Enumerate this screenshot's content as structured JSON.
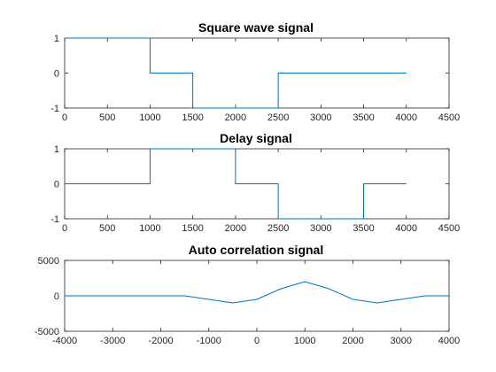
{
  "chart_data": [
    {
      "type": "line",
      "title": "Square wave signal",
      "xlabel": "",
      "ylabel": "",
      "xlim": [
        0,
        4500
      ],
      "ylim": [
        -1,
        1
      ],
      "xticks": [
        0,
        500,
        1000,
        1500,
        2000,
        2500,
        3000,
        3500,
        4000,
        4500
      ],
      "yticks": [
        -1,
        0,
        1
      ],
      "grid": false,
      "color": "#0072BD",
      "series": [
        {
          "x": [
            0,
            1000,
            1000,
            1500,
            1500,
            2500,
            2500,
            4000
          ],
          "y": [
            1,
            1,
            0,
            0,
            -1,
            -1,
            0,
            0
          ]
        }
      ]
    },
    {
      "type": "line",
      "title": "Delay signal",
      "xlabel": "",
      "ylabel": "",
      "xlim": [
        0,
        4500
      ],
      "ylim": [
        -1,
        1
      ],
      "xticks": [
        0,
        500,
        1000,
        1500,
        2000,
        2500,
        3000,
        3500,
        4000,
        4500
      ],
      "yticks": [
        -1,
        0,
        1
      ],
      "grid": false,
      "color": "#0072BD",
      "series": [
        {
          "x": [
            0,
            1000,
            1000,
            2000,
            2000,
            2500,
            2500,
            3500,
            3500,
            4000
          ],
          "y": [
            0,
            0,
            1,
            1,
            0,
            0,
            -1,
            -1,
            0,
            0
          ]
        }
      ]
    },
    {
      "type": "line",
      "title": "Auto correlation signal",
      "xlabel": "",
      "ylabel": "",
      "xlim": [
        -4000,
        4000
      ],
      "ylim": [
        -5000,
        5000
      ],
      "xticks": [
        -4000,
        -3000,
        -2000,
        -1000,
        0,
        1000,
        2000,
        3000,
        4000
      ],
      "yticks": [
        -5000,
        0,
        5000
      ],
      "grid": false,
      "color": "#0072BD",
      "series": [
        {
          "x": [
            -4000,
            -1500,
            -1000,
            -500,
            0,
            500,
            1000,
            1500,
            2000,
            2500,
            3000,
            3500,
            4000
          ],
          "y": [
            0,
            0,
            -500,
            -1000,
            -500,
            1000,
            2000,
            1000,
            -500,
            -1000,
            -500,
            0,
            0
          ]
        }
      ]
    }
  ]
}
